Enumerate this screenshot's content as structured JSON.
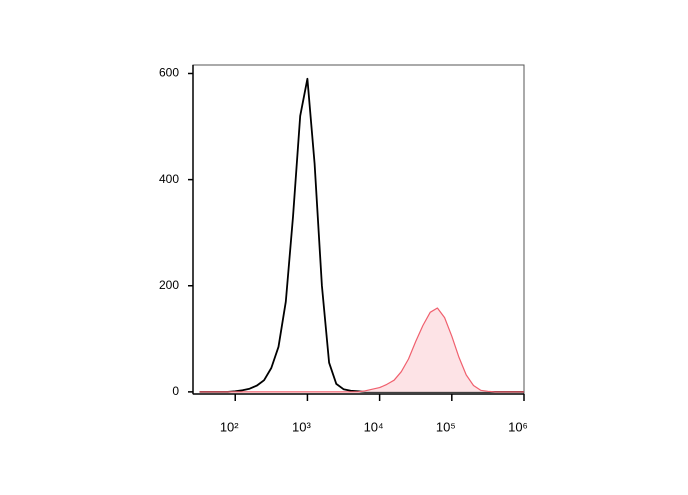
{
  "chart_data": {
    "type": "histogram-overlay",
    "x": [
      32,
      40,
      50,
      63,
      79,
      100,
      126,
      158,
      200,
      251,
      316,
      398,
      501,
      631,
      794,
      1000,
      1259,
      1585,
      1995,
      2512,
      3162,
      3981,
      5012,
      6310,
      7943,
      10000,
      12589,
      15849,
      19953,
      25119,
      31623,
      39811,
      50119,
      63096,
      79433,
      100000,
      125893,
      158489,
      199526,
      251189,
      316228,
      398107,
      501187,
      630957,
      794328,
      1000000
    ],
    "series": [
      {
        "color": "#000000",
        "fill": false,
        "values": [
          0,
          0,
          0,
          0,
          0,
          1,
          3,
          6,
          12,
          22,
          45,
          85,
          170,
          330,
          520,
          590,
          430,
          200,
          55,
          15,
          5,
          2,
          1,
          0,
          0,
          0,
          0,
          0,
          0,
          0,
          0,
          0,
          0,
          0,
          0,
          0,
          0,
          0,
          0,
          0,
          0,
          0,
          0,
          0,
          0,
          0
        ]
      },
      {
        "color": "#f0606e",
        "fill": true,
        "fill_color": "#fde3e6",
        "values": [
          0,
          0,
          0,
          0,
          0,
          0,
          0,
          0,
          0,
          0,
          0,
          0,
          0,
          0,
          0,
          0,
          0,
          0,
          0,
          0,
          0,
          0,
          0,
          2,
          5,
          8,
          14,
          22,
          38,
          62,
          95,
          125,
          150,
          158,
          140,
          105,
          65,
          32,
          12,
          3,
          1,
          0,
          0,
          0,
          0,
          0
        ]
      }
    ],
    "xscale": "log",
    "xlim": [
      26,
      1000000
    ],
    "xticks": [
      {
        "value": 100,
        "label": "10²"
      },
      {
        "value": 1000,
        "label": "10³"
      },
      {
        "value": 10000,
        "label": "10⁴"
      },
      {
        "value": 100000,
        "label": "10⁵"
      },
      {
        "value": 1000000,
        "label": "10⁶"
      }
    ],
    "ylim": [
      -4,
      616
    ],
    "yticks": [
      0,
      200,
      400,
      600
    ]
  }
}
